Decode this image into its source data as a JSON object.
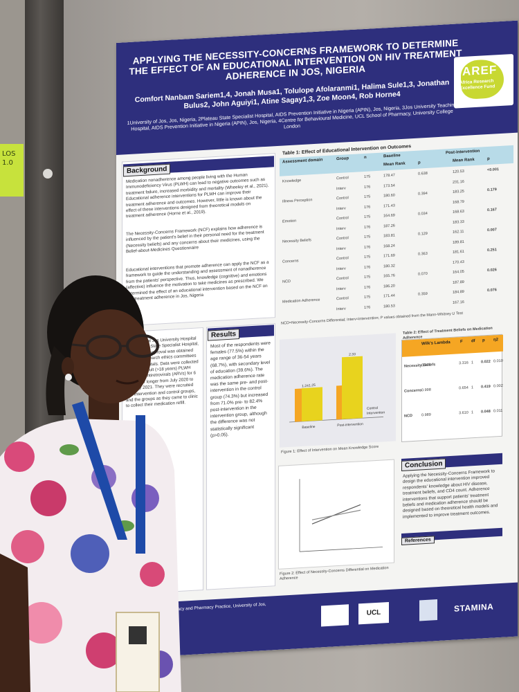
{
  "poster": {
    "title": "APPLYING THE NECESSITY-CONCERNS FRAMEWORK TO DETERMINE THE EFFECT OF AN EDUCATIONAL INTERVENTION ON HIV TREATMENT ADHERENCE IN JOS, NIGERIA",
    "authors": "Comfort Nanbam Sariem1,4, Jonah Musa1, Tolulope Afolaranmi1, Halima Sule1,3, Jonathan Bulus2, John Aguiyi1, Atine Sagay1,3, Zoe Moon4, Rob Horne4",
    "affiliations": "1University of Jos, Jos, Nigeria, 2Plateau State Specialist Hospital, AIDS Prevention Initiative in Nigeria (APIN), Jos, Nigeria, 3Jos University Teaching Hospital, AIDS Prevention Initiative in Nigeria (APIN), Jos, Nigeria, 4Centre for Behavioural Medicine, UCL School of Pharmacy, University College London",
    "logo_text": "AREF",
    "logo_sub": "Africa Research Excellence Fund",
    "background_heading": "Background",
    "background_p1": "Medication nonadherence among people living with the Human Immunodeficiency Virus (PLWH) can lead to negative outcomes such as treatment failure, increased morbidity and mortality (Wheeley et al., 2021). Educational adherence interventions for PLWH can improve their treatment adherence and outcomes. However, little is known about the effect of these interventions designed from theoretical models on treatment adherence (Horne et al., 2019).",
    "background_p2": "The Necessity-Concerns Framework (NCF) explains how adherence is influenced by the patient's belief in their personal need for the treatment (Necessity beliefs) and any concerns about their medicines, using the Belief-about-Medicines Questionnaire",
    "background_p3": "Educational interventions that promote adherence can apply the NCF as a framework to guide the understanding and assessment of nonadherence from the patients' perspective. Thus, knowledge (cognitive) and emotions (affective) influence the motivation to take medicines as prescribed. We determined the effect of an educational intervention based on the NCF on HIV treatment adherence in Jos, Nigeria",
    "results_heading": "Results",
    "results_text": "Most of the respondents were females (77.5%) within the age range of 36-54 years (68.7%), with secondary level of education (39.6%). The medication adherence rate was the same pre- and post-intervention in the control group (74.3%) but increased from 71.0% pre- to 82.4% post-intervention in the intervention group, although the difference was not statistically significant (p>0.05).",
    "methods_text": "conducted at Jos University Hospital and Plateau State Specialist Hospital, Jos. Ethical approval was obtained from the research ethics committees of both hospitals. Data were collected from 351 adult (>18 years) PLWH receiving antiretrovirals (ARVs) for 6 months or longer from July 2020 to January 2021. They were recruited into intervention and control groups, and the groups as they came to clinic to collect their medication refill.",
    "table1_title": "Table 1: Effect of Educational Intervention on Outcomes",
    "table1_headers": [
      "Assessment domain",
      "Group",
      "n",
      "Baseline",
      "Post-intervention"
    ],
    "table1_subheaders": [
      "Mean Rank",
      "p",
      "Mean Rank",
      "p"
    ],
    "table1_rows": [
      [
        "Knowledge",
        "Control",
        "175",
        "178.47",
        "0.638",
        "120.53",
        "<0.001"
      ],
      [
        "",
        "Interv",
        "176",
        "173.54",
        "",
        "231.16",
        ""
      ],
      [
        "Illness Perception",
        "Control",
        "175",
        "180.60",
        "0.394",
        "183.25",
        "0.179"
      ],
      [
        "",
        "Interv",
        "176",
        "171.43",
        "",
        "168.79",
        ""
      ],
      [
        "Emotion",
        "Control",
        "175",
        "164.69",
        "0.034",
        "168.63",
        "0.167"
      ],
      [
        "",
        "Interv",
        "176",
        "187.26",
        "",
        "183.33",
        ""
      ],
      [
        "Necessity Beliefs",
        "Control",
        "175",
        "183.81",
        "0.129",
        "162.11",
        "0.007"
      ],
      [
        "",
        "Interv",
        "176",
        "168.24",
        "",
        "189.81",
        ""
      ],
      [
        "Concerns",
        "Control",
        "175",
        "171.69",
        "0.363",
        "181.61",
        "0.251"
      ],
      [
        "",
        "Interv",
        "176",
        "180.32",
        "",
        "170.43",
        ""
      ],
      [
        "NCD",
        "Control",
        "175",
        "165.76",
        "0.070",
        "164.05",
        "0.026"
      ],
      [
        "",
        "Interv",
        "176",
        "186.20",
        "",
        "187.89",
        ""
      ],
      [
        "Medication Adherence",
        "Control",
        "175",
        "171.44",
        "0.359",
        "184.89",
        "0.076"
      ],
      [
        "",
        "Interv",
        "176",
        "180.53",
        "",
        "167.16",
        ""
      ]
    ],
    "table1_note": "NCD=Necessity-Concerns Differential; Interv=intervention; P values obtained from the Mann-Whitney U Test",
    "figure1_caption": "Figure 1: Effect of Intervention on Mean Knowledge Score",
    "figure2_caption": "Figure 2: Effect of Necessity-Concerns Differential on Medication Adherence",
    "table2_title": "Table 2: Effect of Treatment Beliefs on Medication Adherence",
    "table2_headers": [
      "Wilk's Lambda",
      "F",
      "df",
      "p",
      "η2"
    ],
    "table2_rows": [
      [
        "Necessity Beliefs",
        "0.990",
        "3.316",
        "1",
        "0.022",
        "0.010"
      ],
      [
        "Concerns",
        "0.998",
        "0.654",
        "1",
        "0.419",
        "0.002"
      ],
      [
        "NCD",
        "0.989",
        "3.610",
        "1",
        "0.048",
        "0.011"
      ]
    ],
    "conclusion_heading": "Conclusion",
    "conclusion_text": "Applying the Necessity-Concerns Framework to design the educational intervention improved respondents' knowledge about HIV disease, treatment beliefs, and CD4 count. Adherence interventions that support patients' treatment beliefs and medication adherence should be designed based on theoretical health models and implemented to improve treatment outcomes.",
    "references_heading": "References",
    "footer_text": "Pharmacy and Pharmacy Practice, University of Jos, Jos",
    "footer_logo_ucl": "UCL",
    "footer_logo_stamina": "STAMINA"
  },
  "chart_data": {
    "type": "bar",
    "categories": [
      "Baseline",
      "Post-intervention"
    ],
    "series": [
      {
        "name": "Control",
        "values": [
          1.24,
          1.27
        ]
      },
      {
        "name": "Intervention",
        "values": [
          1.25,
          2.33
        ]
      }
    ],
    "colors": {
      "control": "#f5a623",
      "intervention": "#e8d31e"
    }
  },
  "sticky_note": "LOS\n1.0",
  "colors": {
    "poster_header": "#2e2f7d",
    "accent_orange": "#f5a623",
    "lanyard": "#1e4aa8"
  }
}
